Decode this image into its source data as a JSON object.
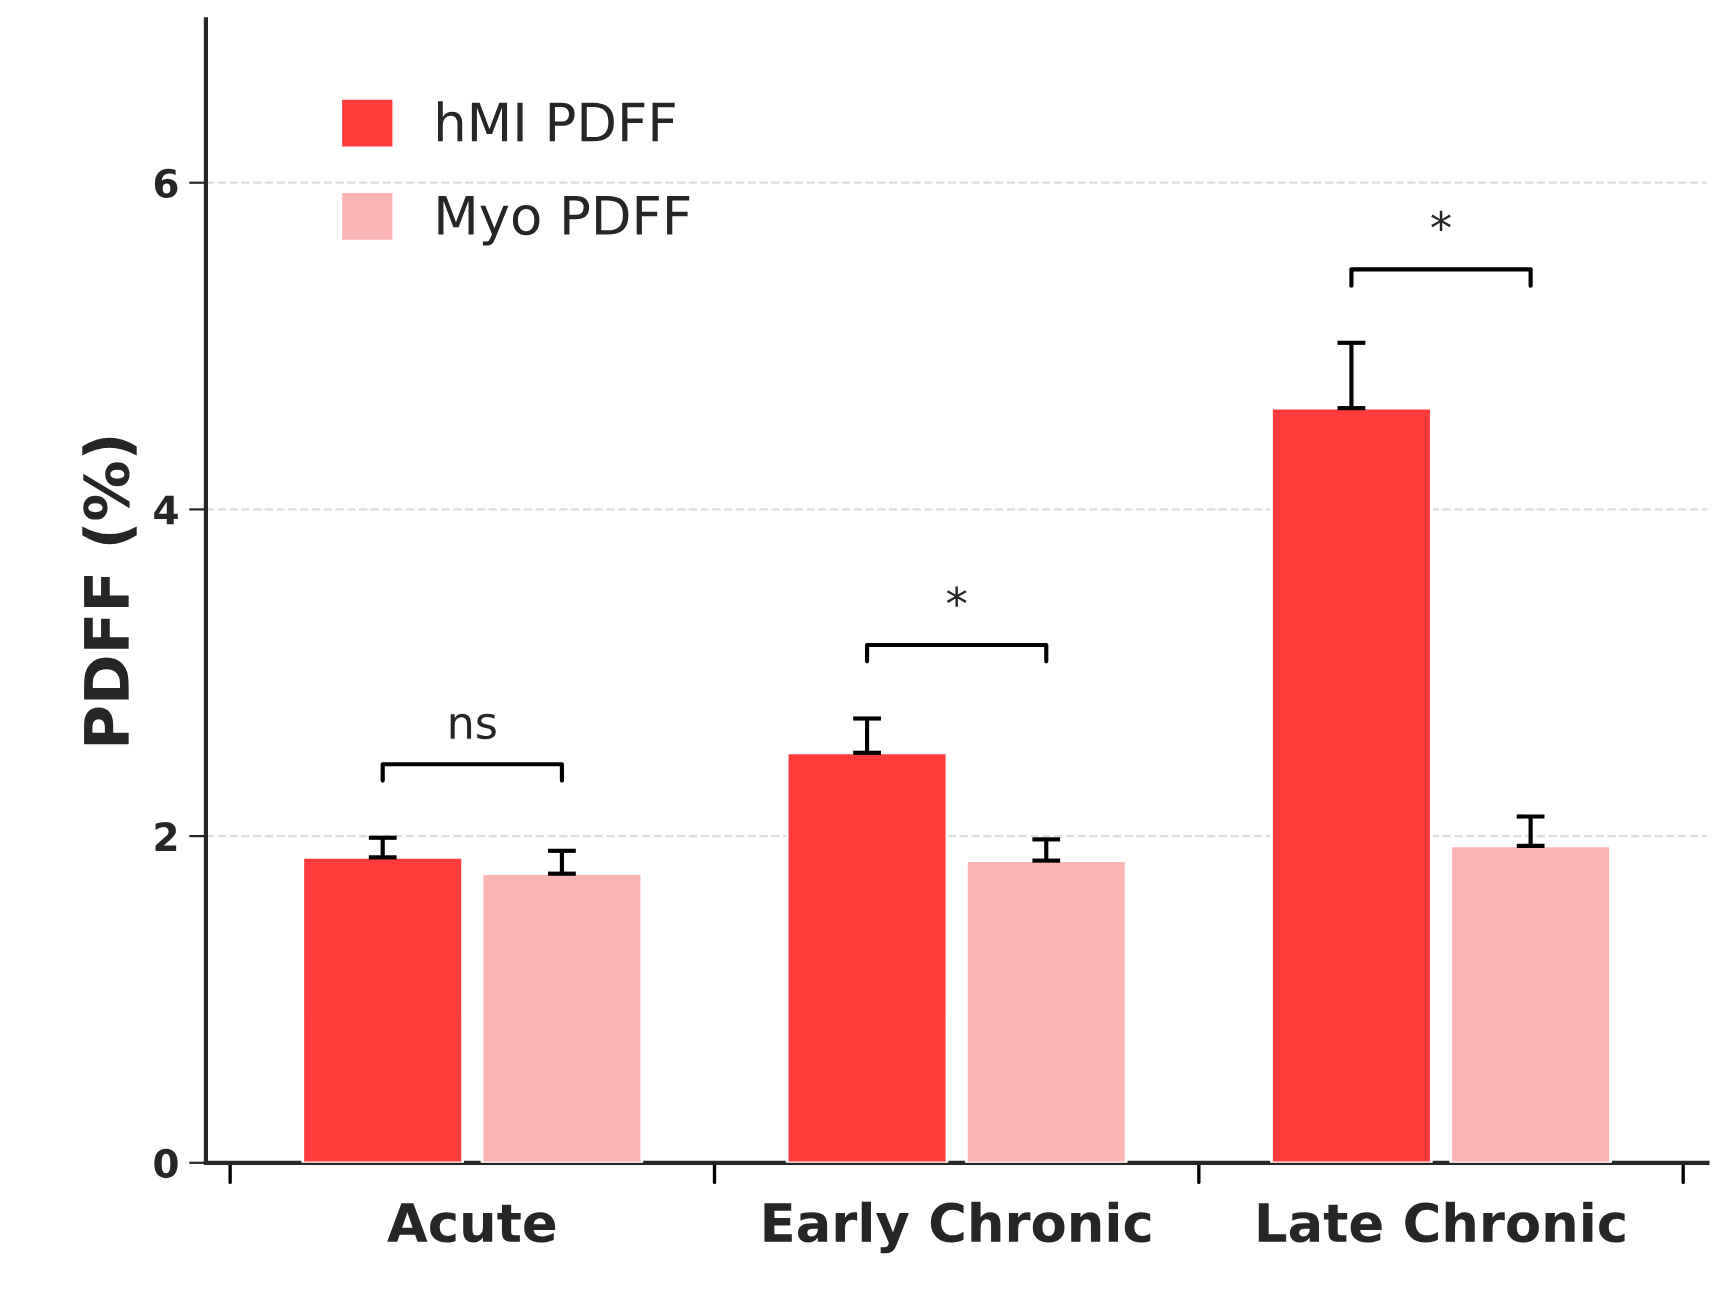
{
  "chart_data": {
    "type": "bar",
    "ylabel": "PDFF (%)",
    "categories": [
      "Acute",
      "Early Chronic",
      "Late Chronic"
    ],
    "series": [
      {
        "name": "hMI PDFF",
        "color": "#ff3b3b",
        "values": [
          1.87,
          2.51,
          4.62
        ],
        "errors": [
          [
            1.87,
            1.99
          ],
          [
            2.51,
            2.72
          ],
          [
            4.62,
            5.02
          ]
        ]
      },
      {
        "name": "Myo PDFF",
        "color": "#fbb4b4",
        "values": [
          1.77,
          1.85,
          1.94
        ],
        "errors": [
          [
            1.77,
            1.91
          ],
          [
            1.85,
            1.98
          ],
          [
            1.94,
            2.12
          ]
        ]
      }
    ],
    "ylim": [
      0,
      7
    ],
    "yticks": [
      0,
      2,
      4,
      6
    ],
    "grid": "y",
    "legend": "top left",
    "annotations": [
      "ns",
      "*",
      "*"
    ]
  }
}
